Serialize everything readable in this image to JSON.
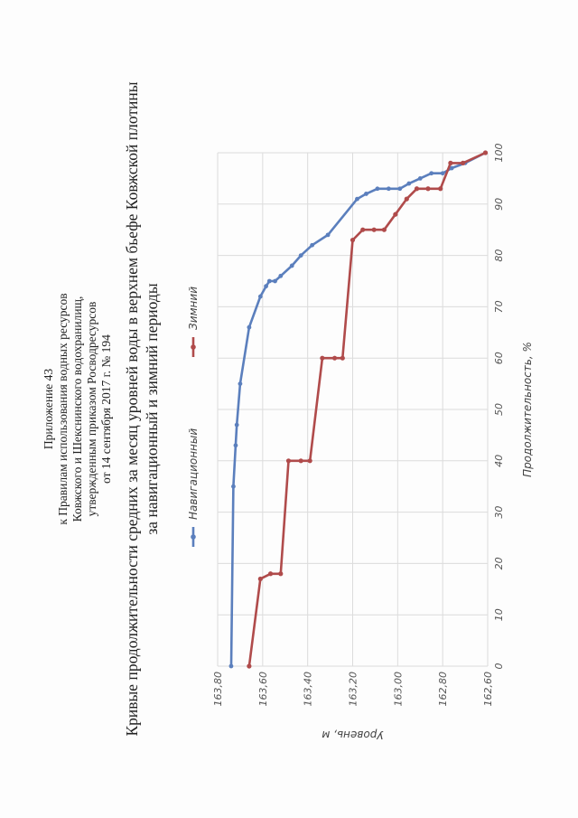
{
  "appendix": {
    "lines": [
      "Приложение 43",
      "к Правилам использования водных ресурсов",
      "Ковжского и Шекснинского водохранилищ,",
      "утвержденным приказом Росводресурсов",
      "от 14 сентября 2017 г. № 194"
    ]
  },
  "chart_data": {
    "type": "line",
    "title_lines": [
      "Кривые продолжительности средних за месяц уровней воды в верхнем бьефе Ковжской плотины",
      "за навигационный и зимний периоды"
    ],
    "xlabel": "Продолжительность, %",
    "ylabel": "Уровень, м",
    "xlim": [
      0,
      100
    ],
    "ylim": [
      162.6,
      163.8
    ],
    "x_ticks": [
      "0",
      "10",
      "20",
      "30",
      "40",
      "50",
      "60",
      "70",
      "80",
      "90",
      "100"
    ],
    "y_ticks": [
      "162,60",
      "162,80",
      "163,00",
      "163,20",
      "163,40",
      "163,60",
      "163,80"
    ],
    "grid": true,
    "legend_position": "top",
    "series": [
      {
        "name": "Навигационный",
        "color": "#5b7fbd",
        "points": [
          [
            0,
            163.74
          ],
          [
            35,
            163.73
          ],
          [
            43,
            163.72
          ],
          [
            47,
            163.715
          ],
          [
            55,
            163.7
          ],
          [
            66,
            163.66
          ],
          [
            72,
            163.61
          ],
          [
            74,
            163.585
          ],
          [
            75,
            163.57
          ],
          [
            75,
            163.545
          ],
          [
            76,
            163.52
          ],
          [
            78,
            163.47
          ],
          [
            80,
            163.43
          ],
          [
            82,
            163.38
          ],
          [
            84,
            163.31
          ],
          [
            91,
            163.18
          ],
          [
            92,
            163.14
          ],
          [
            93,
            163.09
          ],
          [
            93,
            163.04
          ],
          [
            93,
            162.99
          ],
          [
            94,
            162.95
          ],
          [
            95,
            162.9
          ],
          [
            96,
            162.85
          ],
          [
            96,
            162.8
          ],
          [
            97,
            162.76
          ],
          [
            98,
            162.7
          ],
          [
            100,
            162.61
          ]
        ]
      },
      {
        "name": "Зимний",
        "color": "#b04b4b",
        "points": [
          [
            0,
            163.66
          ],
          [
            17,
            163.61
          ],
          [
            18,
            163.565
          ],
          [
            18,
            163.52
          ],
          [
            40,
            163.485
          ],
          [
            40,
            163.43
          ],
          [
            40,
            163.39
          ],
          [
            60,
            163.335
          ],
          [
            60,
            163.28
          ],
          [
            60,
            163.245
          ],
          [
            83,
            163.2
          ],
          [
            85,
            163.155
          ],
          [
            85,
            163.105
          ],
          [
            85,
            163.06
          ],
          [
            88,
            163.01
          ],
          [
            91,
            162.96
          ],
          [
            93,
            162.915
          ],
          [
            93,
            162.865
          ],
          [
            93,
            162.81
          ],
          [
            98,
            162.765
          ],
          [
            98,
            162.71
          ],
          [
            100,
            162.61
          ]
        ]
      }
    ]
  }
}
